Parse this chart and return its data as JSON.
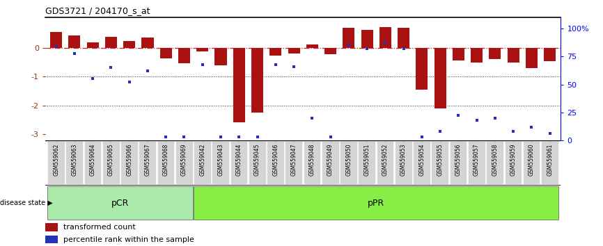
{
  "title": "GDS3721 / 204170_s_at",
  "samples": [
    "GSM559062",
    "GSM559063",
    "GSM559064",
    "GSM559065",
    "GSM559066",
    "GSM559067",
    "GSM559068",
    "GSM559069",
    "GSM559042",
    "GSM559043",
    "GSM559044",
    "GSM559045",
    "GSM559046",
    "GSM559047",
    "GSM559048",
    "GSM559049",
    "GSM559050",
    "GSM559051",
    "GSM559052",
    "GSM559053",
    "GSM559054",
    "GSM559055",
    "GSM559056",
    "GSM559057",
    "GSM559058",
    "GSM559059",
    "GSM559060",
    "GSM559061"
  ],
  "red_bars": [
    0.55,
    0.42,
    0.18,
    0.38,
    0.22,
    0.35,
    -0.38,
    -0.55,
    -0.12,
    -0.62,
    -2.58,
    -2.25,
    -0.28,
    -0.2,
    0.1,
    -0.22,
    0.68,
    0.62,
    0.7,
    0.68,
    -1.45,
    -2.1,
    -0.45,
    -0.52,
    -0.4,
    -0.52,
    -0.72,
    -0.48
  ],
  "blue_dots": [
    84,
    78,
    55,
    65,
    52,
    62,
    3,
    3,
    68,
    3,
    3,
    3,
    68,
    66,
    20,
    3,
    85,
    82,
    88,
    82,
    3,
    8,
    22,
    18,
    20,
    8,
    12,
    6
  ],
  "pCR_count": 8,
  "pPR_count": 20,
  "ylim": [
    -3.2,
    1.05
  ],
  "y2lim": [
    0,
    110.25
  ],
  "y2ticks": [
    0,
    25,
    50,
    75,
    100
  ],
  "y2ticklabels": [
    "0",
    "25",
    "50",
    "75",
    "100%"
  ],
  "yticks": [
    -3,
    -2,
    -1,
    0
  ],
  "ytick_labels": [
    "-3",
    "-2",
    "-1",
    "0"
  ],
  "bar_color": "#AA1111",
  "dot_color": "#2233BB",
  "pCR_color": "#AAEAAA",
  "pPR_color": "#88EE44",
  "zero_line_color": "#CC2222",
  "dotted_line_color": "#333333",
  "bar_width": 0.65,
  "fig_width": 8.66,
  "fig_height": 3.54
}
